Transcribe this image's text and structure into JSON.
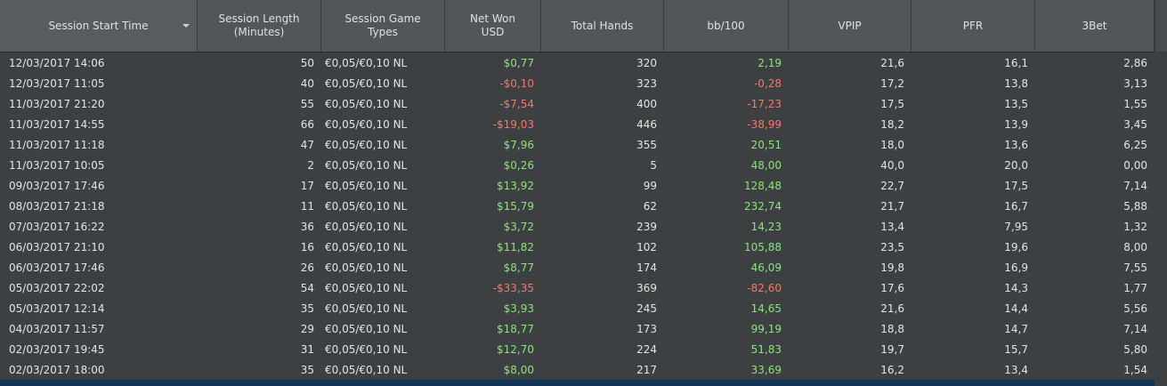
{
  "columns": [
    {
      "label": "Session Start Time",
      "sorted": true
    },
    {
      "label": "Session Length\n(Minutes)"
    },
    {
      "label": "Session Game\nTypes"
    },
    {
      "label": "Net Won\nUSD"
    },
    {
      "label": "Total Hands"
    },
    {
      "label": "bb/100"
    },
    {
      "label": "VPIP"
    },
    {
      "label": "PFR"
    },
    {
      "label": "3Bet"
    }
  ],
  "colors": {
    "positive": "#8fe27d",
    "negative": "#f07a6e",
    "selected_row": "#123355"
  },
  "rows": [
    {
      "start": "12/03/2017 14:06",
      "length": "50",
      "game": "€0,05/€0,10 NL",
      "net": "$0,77",
      "hands": "320",
      "bb100": "2,19",
      "vpip": "21,6",
      "pfr": "16,1",
      "threebet": "2,86",
      "sign": "pos"
    },
    {
      "start": "12/03/2017 11:05",
      "length": "40",
      "game": "€0,05/€0,10 NL",
      "net": "-$0,10",
      "hands": "323",
      "bb100": "-0,28",
      "vpip": "17,2",
      "pfr": "13,8",
      "threebet": "3,13",
      "sign": "neg"
    },
    {
      "start": "11/03/2017 21:20",
      "length": "55",
      "game": "€0,05/€0,10 NL",
      "net": "-$7,54",
      "hands": "400",
      "bb100": "-17,23",
      "vpip": "17,5",
      "pfr": "13,5",
      "threebet": "1,55",
      "sign": "neg"
    },
    {
      "start": "11/03/2017 14:55",
      "length": "66",
      "game": "€0,05/€0,10 NL",
      "net": "-$19,03",
      "hands": "446",
      "bb100": "-38,99",
      "vpip": "18,2",
      "pfr": "13,9",
      "threebet": "3,45",
      "sign": "neg"
    },
    {
      "start": "11/03/2017 11:18",
      "length": "47",
      "game": "€0,05/€0,10 NL",
      "net": "$7,96",
      "hands": "355",
      "bb100": "20,51",
      "vpip": "18,0",
      "pfr": "13,6",
      "threebet": "6,25",
      "sign": "pos"
    },
    {
      "start": "11/03/2017 10:05",
      "length": "2",
      "game": "€0,05/€0,10 NL",
      "net": "$0,26",
      "hands": "5",
      "bb100": "48,00",
      "vpip": "40,0",
      "pfr": "20,0",
      "threebet": "0,00",
      "sign": "pos"
    },
    {
      "start": "09/03/2017 17:46",
      "length": "17",
      "game": "€0,05/€0,10 NL",
      "net": "$13,92",
      "hands": "99",
      "bb100": "128,48",
      "vpip": "22,7",
      "pfr": "17,5",
      "threebet": "7,14",
      "sign": "pos"
    },
    {
      "start": "08/03/2017 21:18",
      "length": "11",
      "game": "€0,05/€0,10 NL",
      "net": "$15,79",
      "hands": "62",
      "bb100": "232,74",
      "vpip": "21,7",
      "pfr": "16,7",
      "threebet": "5,88",
      "sign": "pos"
    },
    {
      "start": "07/03/2017 16:22",
      "length": "36",
      "game": "€0,05/€0,10 NL",
      "net": "$3,72",
      "hands": "239",
      "bb100": "14,23",
      "vpip": "13,4",
      "pfr": "7,95",
      "threebet": "1,32",
      "sign": "pos"
    },
    {
      "start": "06/03/2017 21:10",
      "length": "16",
      "game": "€0,05/€0,10 NL",
      "net": "$11,82",
      "hands": "102",
      "bb100": "105,88",
      "vpip": "23,5",
      "pfr": "19,6",
      "threebet": "8,00",
      "sign": "pos"
    },
    {
      "start": "06/03/2017 17:46",
      "length": "26",
      "game": "€0,05/€0,10 NL",
      "net": "$8,77",
      "hands": "174",
      "bb100": "46,09",
      "vpip": "19,8",
      "pfr": "16,9",
      "threebet": "7,55",
      "sign": "pos"
    },
    {
      "start": "05/03/2017 22:02",
      "length": "54",
      "game": "€0,05/€0,10 NL",
      "net": "-$33,35",
      "hands": "369",
      "bb100": "-82,60",
      "vpip": "17,6",
      "pfr": "14,3",
      "threebet": "1,77",
      "sign": "neg"
    },
    {
      "start": "05/03/2017 12:14",
      "length": "35",
      "game": "€0,05/€0,10 NL",
      "net": "$3,93",
      "hands": "245",
      "bb100": "14,65",
      "vpip": "21,6",
      "pfr": "14,4",
      "threebet": "5,56",
      "sign": "pos"
    },
    {
      "start": "04/03/2017 11:57",
      "length": "29",
      "game": "€0,05/€0,10 NL",
      "net": "$18,77",
      "hands": "173",
      "bb100": "99,19",
      "vpip": "18,8",
      "pfr": "14,7",
      "threebet": "7,14",
      "sign": "pos"
    },
    {
      "start": "02/03/2017 19:45",
      "length": "31",
      "game": "€0,05/€0,10 NL",
      "net": "$12,70",
      "hands": "224",
      "bb100": "51,83",
      "vpip": "19,7",
      "pfr": "15,7",
      "threebet": "5,80",
      "sign": "pos"
    },
    {
      "start": "02/03/2017 18:00",
      "length": "35",
      "game": "€0,05/€0,10 NL",
      "net": "$8,00",
      "hands": "217",
      "bb100": "33,69",
      "vpip": "16,2",
      "pfr": "13,4",
      "threebet": "1,54",
      "sign": "pos"
    },
    {
      "start": "",
      "length": "",
      "game": "",
      "net": "",
      "hands": "",
      "bb100": "",
      "vpip": "",
      "pfr": "",
      "threebet": "",
      "sign": "pos",
      "selected": true
    }
  ]
}
